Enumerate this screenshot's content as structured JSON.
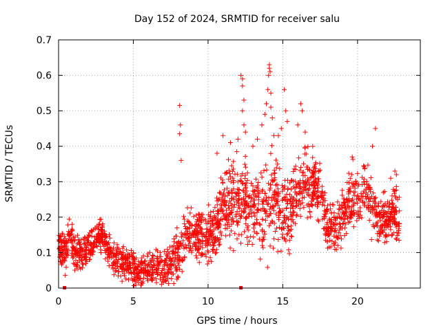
{
  "chart_data": {
    "type": "scatter",
    "title": "Day 152 of 2024, SRMTID for receiver salu",
    "xlabel": "GPS time / hours",
    "ylabel": "SRMTID / TECUs",
    "xlim": [
      0,
      24.2
    ],
    "ylim": [
      0,
      0.7
    ],
    "xticks": [
      0,
      5,
      10,
      15,
      20
    ],
    "xtick_labels": [
      "0",
      "5",
      "10",
      "15",
      "20"
    ],
    "yticks": [
      0,
      0.1,
      0.2,
      0.3,
      0.4,
      0.5,
      0.6,
      0.7
    ],
    "ytick_labels": [
      "0",
      "0.1",
      "0.2",
      "0.3",
      "0.4",
      "0.5",
      "0.6",
      "0.7"
    ],
    "grid": true,
    "marker": "+",
    "color": "#ff0000",
    "series": [
      {
        "name": "SRMTID",
        "baseline_trend": {
          "x": [
            0,
            0.5,
            0.75,
            1,
            1.5,
            2,
            2.5,
            3,
            3.5,
            4,
            4.5,
            5,
            5.5,
            6,
            6.5,
            7,
            7.5,
            8,
            8.5,
            9,
            9.5,
            10,
            10.5,
            11,
            11.5,
            12,
            12.5,
            13,
            13.5,
            14,
            14.5,
            15,
            15.5,
            16,
            16.5,
            17,
            17.5,
            18,
            18.5,
            19,
            19.5,
            20,
            20.5,
            21,
            21.5,
            22,
            22.5,
            22.8
          ],
          "y": [
            0.12,
            0.1,
            0.18,
            0.1,
            0.1,
            0.11,
            0.15,
            0.14,
            0.09,
            0.08,
            0.07,
            0.06,
            0.05,
            0.05,
            0.06,
            0.06,
            0.07,
            0.09,
            0.15,
            0.15,
            0.15,
            0.15,
            0.16,
            0.23,
            0.25,
            0.25,
            0.24,
            0.22,
            0.2,
            0.25,
            0.24,
            0.22,
            0.22,
            0.26,
            0.3,
            0.29,
            0.28,
            0.18,
            0.16,
            0.2,
            0.25,
            0.27,
            0.28,
            0.23,
            0.18,
            0.2,
            0.22,
            0.18
          ]
        },
        "spread_trend": {
          "x": [
            0,
            2,
            4,
            6,
            7.5,
            8,
            9,
            10,
            11,
            12,
            13,
            14,
            15,
            16,
            17,
            18,
            19,
            20,
            21,
            22,
            22.8
          ],
          "y": [
            0.035,
            0.035,
            0.03,
            0.03,
            0.035,
            0.05,
            0.05,
            0.05,
            0.07,
            0.08,
            0.08,
            0.09,
            0.08,
            0.07,
            0.06,
            0.05,
            0.06,
            0.06,
            0.06,
            0.05,
            0.05
          ]
        },
        "spikes": [
          {
            "x": 8.1,
            "y": 0.515
          },
          {
            "x": 8.15,
            "y": 0.46
          },
          {
            "x": 8.1,
            "y": 0.435
          },
          {
            "x": 8.2,
            "y": 0.36
          },
          {
            "x": 10.6,
            "y": 0.38
          },
          {
            "x": 11.0,
            "y": 0.43
          },
          {
            "x": 11.5,
            "y": 0.41
          },
          {
            "x": 12.2,
            "y": 0.6
          },
          {
            "x": 12.3,
            "y": 0.59
          },
          {
            "x": 12.3,
            "y": 0.57
          },
          {
            "x": 12.4,
            "y": 0.53
          },
          {
            "x": 12.3,
            "y": 0.5
          },
          {
            "x": 12.4,
            "y": 0.46
          },
          {
            "x": 12.5,
            "y": 0.44
          },
          {
            "x": 12.0,
            "y": 0.42
          },
          {
            "x": 13.0,
            "y": 0.4
          },
          {
            "x": 13.3,
            "y": 0.42
          },
          {
            "x": 13.6,
            "y": 0.46
          },
          {
            "x": 13.8,
            "y": 0.49
          },
          {
            "x": 13.9,
            "y": 0.52
          },
          {
            "x": 14.0,
            "y": 0.56
          },
          {
            "x": 14.05,
            "y": 0.6
          },
          {
            "x": 14.1,
            "y": 0.62
          },
          {
            "x": 14.1,
            "y": 0.63
          },
          {
            "x": 14.15,
            "y": 0.61
          },
          {
            "x": 14.2,
            "y": 0.55
          },
          {
            "x": 14.2,
            "y": 0.51
          },
          {
            "x": 14.3,
            "y": 0.48
          },
          {
            "x": 14.4,
            "y": 0.43
          },
          {
            "x": 14.7,
            "y": 0.43
          },
          {
            "x": 14.9,
            "y": 0.45
          },
          {
            "x": 15.1,
            "y": 0.56
          },
          {
            "x": 15.2,
            "y": 0.5
          },
          {
            "x": 15.3,
            "y": 0.47
          },
          {
            "x": 16.0,
            "y": 0.46
          },
          {
            "x": 16.2,
            "y": 0.52
          },
          {
            "x": 16.3,
            "y": 0.5
          },
          {
            "x": 16.5,
            "y": 0.44
          },
          {
            "x": 17.0,
            "y": 0.4
          },
          {
            "x": 21.2,
            "y": 0.45
          },
          {
            "x": 21.0,
            "y": 0.4
          },
          {
            "x": 22.5,
            "y": 0.33
          },
          {
            "x": 22.6,
            "y": 0.32
          }
        ],
        "axis_markers_x": [
          0.4,
          12.2
        ]
      }
    ]
  }
}
